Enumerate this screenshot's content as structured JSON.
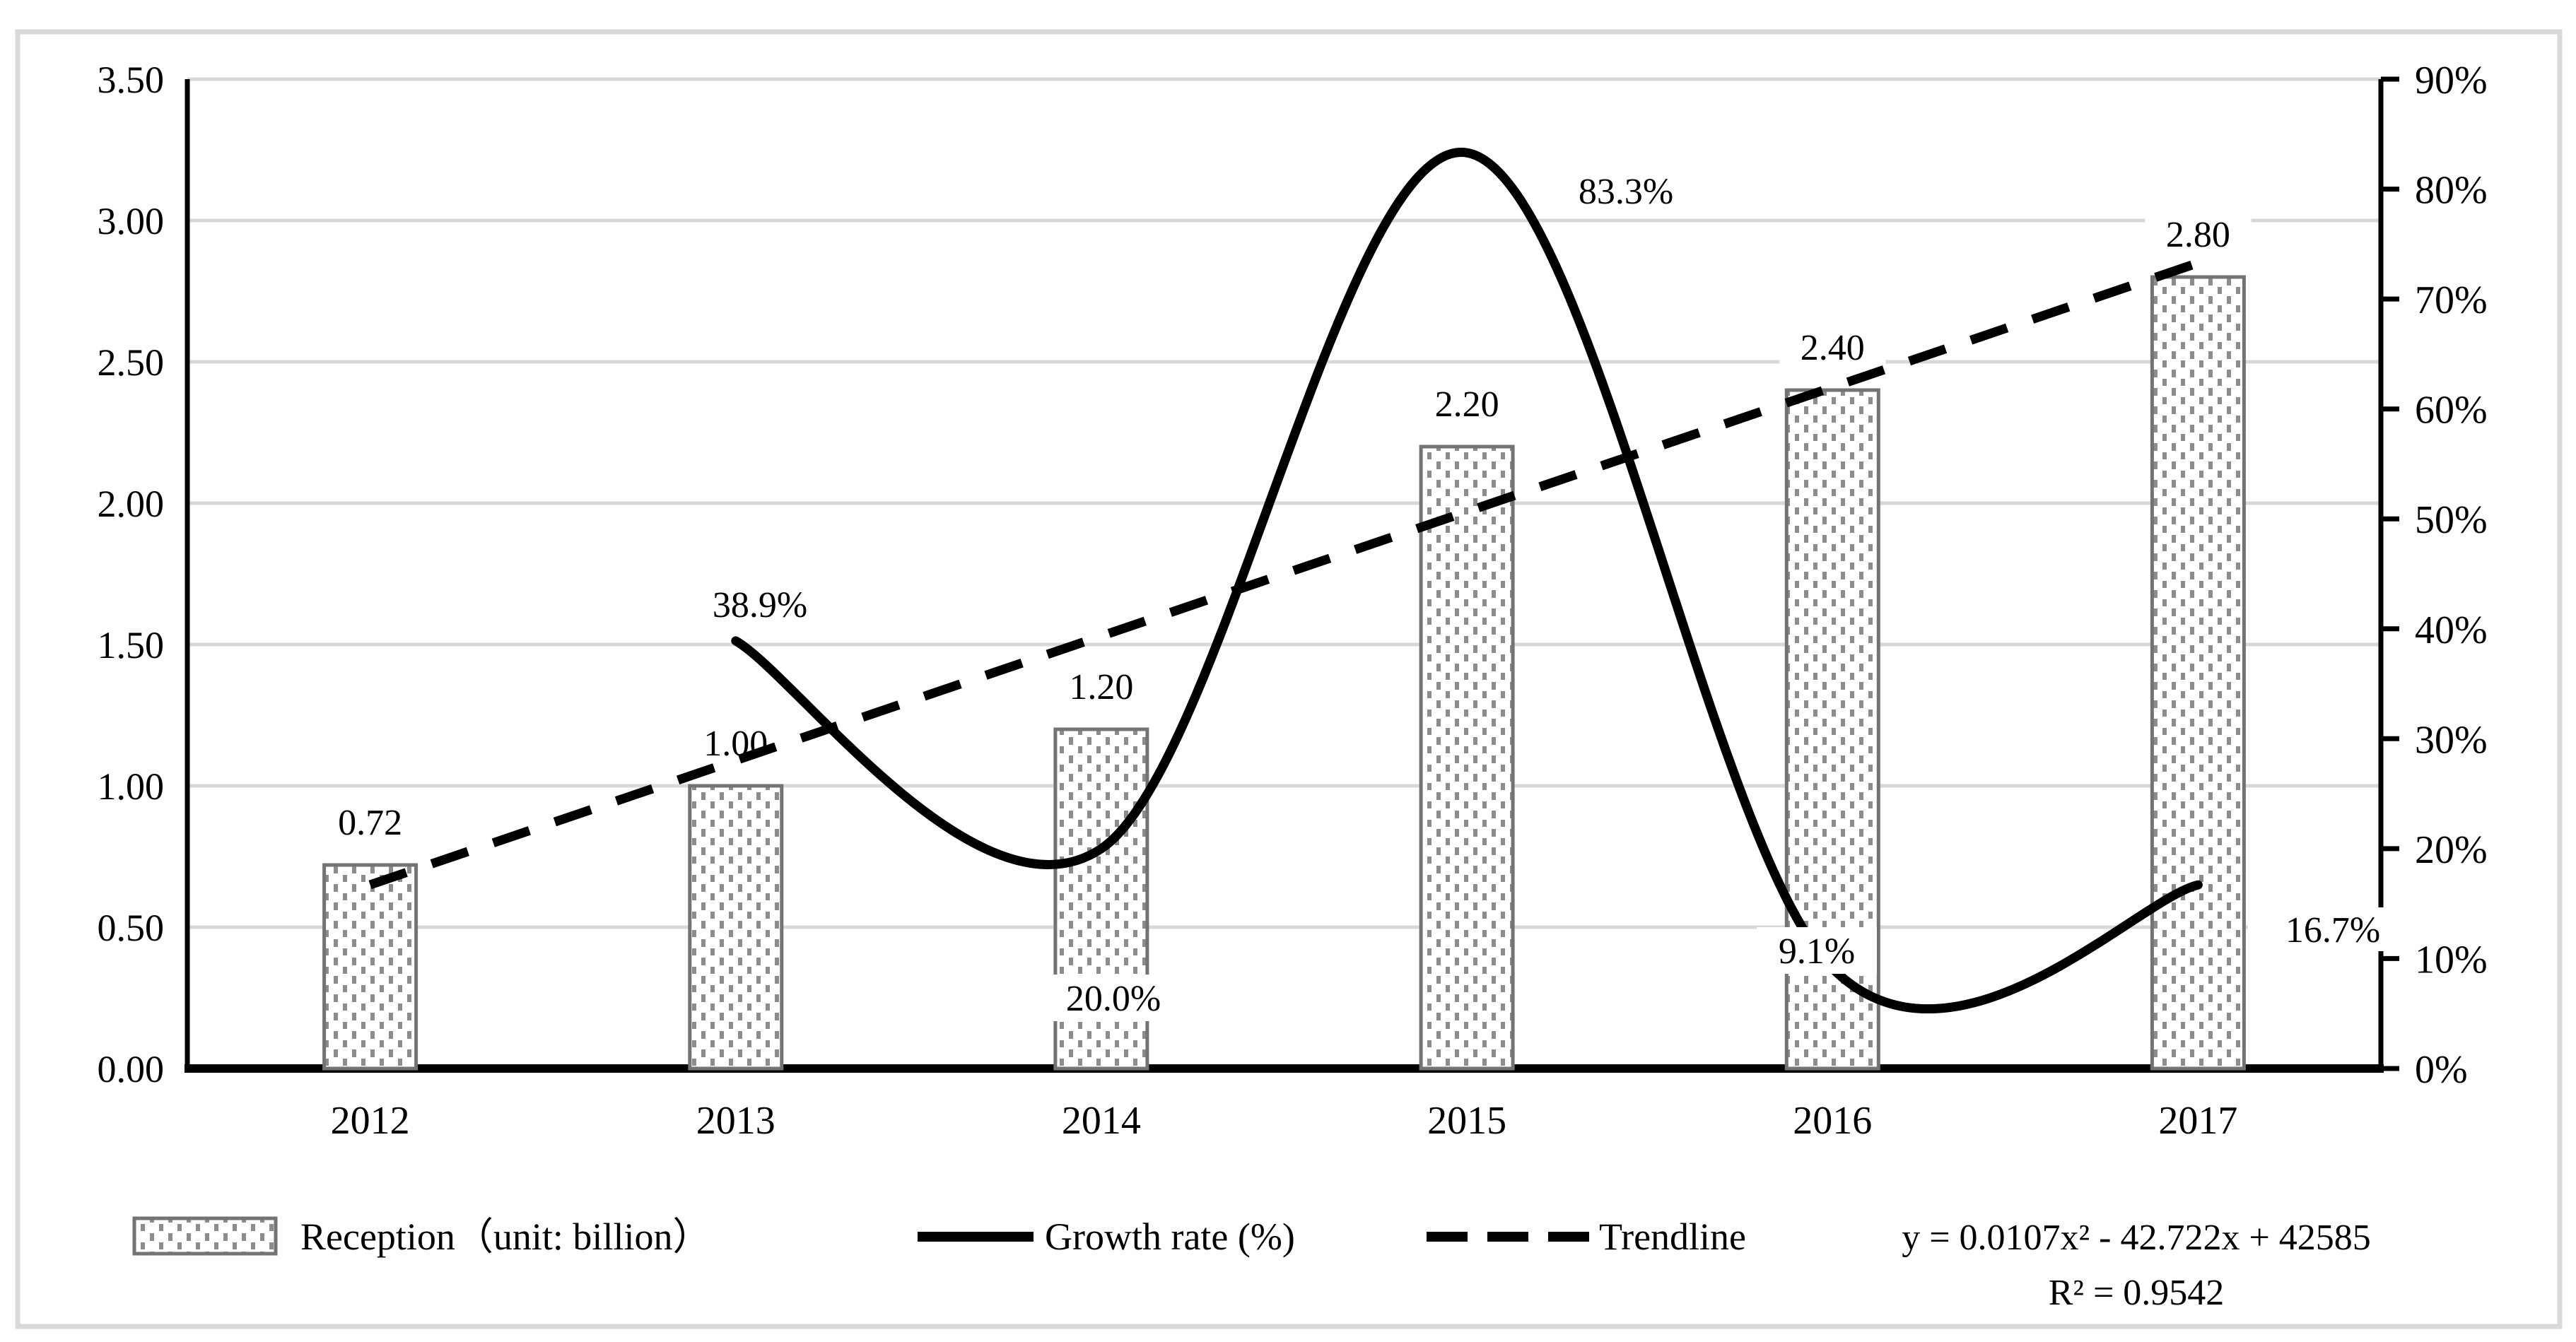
{
  "chart_data": {
    "type": "combo: bar + smooth line + dashed trendline",
    "title": "",
    "categories": [
      "2012",
      "2013",
      "2014",
      "2015",
      "2016",
      "2017"
    ],
    "series": [
      {
        "name": "Reception（unit: billion）",
        "type": "bar",
        "axis": "primary",
        "values": [
          0.72,
          1.0,
          1.2,
          2.2,
          2.4,
          2.8
        ],
        "data_labels": [
          "0.72",
          "1.00",
          "1.20",
          "2.20",
          "2.40",
          "2.80"
        ]
      },
      {
        "name": "Growth rate (%)",
        "type": "smooth-line",
        "axis": "secondary",
        "x": [
          "2013",
          "2014",
          "2015",
          "2016",
          "2017"
        ],
        "values": [
          38.9,
          20.0,
          83.3,
          9.1,
          16.7
        ],
        "data_labels": [
          "38.9%",
          "20.0%",
          "83.3%",
          "9.1%",
          "16.7%"
        ]
      },
      {
        "name": "Trendline",
        "type": "dashed-trendline",
        "axis": "primary",
        "start_value": 0.65,
        "end_value": 2.85
      }
    ],
    "primary_axis": {
      "min": 0,
      "max": 3.5,
      "step": 0.5,
      "tick_labels": [
        "0.00",
        "0.50",
        "1.00",
        "1.50",
        "2.00",
        "2.50",
        "3.00",
        "3.50"
      ]
    },
    "secondary_axis": {
      "min": 0,
      "max": 90,
      "step": 10,
      "tick_labels": [
        "0%",
        "10%",
        "20%",
        "30%",
        "40%",
        "50%",
        "60%",
        "70%",
        "80%",
        "90%"
      ]
    },
    "grid": "horizontal light gray lines at primary-axis steps",
    "legend": {
      "position": "bottom",
      "items": [
        {
          "label": "Reception（unit: billion）",
          "swatch": "dotted-bar"
        },
        {
          "label": "Growth rate (%)",
          "swatch": "solid-line"
        },
        {
          "label": "Trendline",
          "swatch": "dashed-line"
        }
      ]
    },
    "annotation": {
      "equation": "y = 0.0107x² - 42.722x + 42585",
      "r_squared": "R² = 0.9542"
    },
    "colors": {
      "line": "#000000",
      "grid": "#d9d9d9",
      "figure_border": "#d9d9d9",
      "bar_border": "#737373",
      "bar_dot": "#8c8c8c",
      "text": "#000000",
      "background": "#ffffff"
    }
  }
}
